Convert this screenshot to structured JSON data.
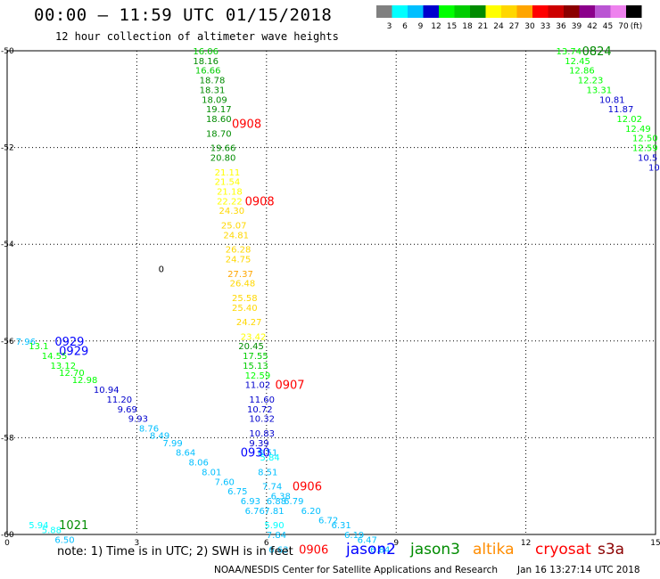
{
  "header": {
    "title": "00:00 – 11:59 UTC 01/15/2018",
    "subtitle": "12 hour collection of altimeter wave heights"
  },
  "colorbar": {
    "colors": [
      "#808080",
      "#00ffff",
      "#00bfff",
      "#0000cd",
      "#00ff00",
      "#00cd00",
      "#008b00",
      "#ffff00",
      "#ffd700",
      "#ffa500",
      "#ff0000",
      "#cd0000",
      "#8b0000",
      "#8b008b",
      "#ba55d3",
      "#ee82ee",
      "#000000"
    ],
    "labels": [
      "3",
      "6",
      "9",
      "12",
      "15",
      "18",
      "21",
      "24",
      "27",
      "30",
      "33",
      "36",
      "39",
      "42",
      "45",
      "70",
      "(ft)"
    ]
  },
  "footer": {
    "note": "note: 1) Time is in UTC; 2) SWH is in feet",
    "missions": [
      {
        "name": "jason2",
        "color": "#0000ff"
      },
      {
        "name": "jason3",
        "color": "#008b00"
      },
      {
        "name": "altika",
        "color": "#ff8c00"
      },
      {
        "name": "cryosat",
        "color": "#ff0000"
      },
      {
        "name": "s3a",
        "color": "#8b0000"
      }
    ],
    "credit": "NOAA/NESDIS Center for Satellite Applications and Research",
    "timestamp": "Jan 16 13:27:14 UTC 2018"
  },
  "chart_data": {
    "type": "scatter",
    "xlim": [
      0,
      15
    ],
    "ylim": [
      -60,
      -50
    ],
    "xticks": [
      "0",
      "3",
      "6",
      "9",
      "12",
      "15"
    ],
    "yticks": [
      "-50",
      "-52",
      "-54",
      "-56",
      "-58",
      "-60"
    ],
    "grid": true,
    "tracks": [
      {
        "label": "0908",
        "label_pos": [
          5.2,
          -51.5
        ],
        "label_color": "#ff0000",
        "points": [
          [
            4.3,
            -50.0,
            "16.06"
          ],
          [
            4.3,
            -50.2,
            "18.16"
          ],
          [
            4.35,
            -50.4,
            "16.66"
          ],
          [
            4.45,
            -50.6,
            "18.78"
          ],
          [
            4.45,
            -50.8,
            "18.31"
          ],
          [
            4.5,
            -51.0,
            "18.09"
          ],
          [
            4.6,
            -51.2,
            "19.17"
          ],
          [
            4.6,
            -51.4,
            "18.60"
          ],
          [
            4.6,
            -51.7,
            "18.70"
          ],
          [
            4.7,
            -52.0,
            "19.66"
          ],
          [
            4.7,
            -52.2,
            "20.80"
          ]
        ]
      },
      {
        "label": "0908",
        "label_pos": [
          5.5,
          -53.1
        ],
        "label_color": "#ff0000",
        "points": [
          [
            4.8,
            -52.5,
            "21.11"
          ],
          [
            4.8,
            -52.7,
            "21.54"
          ],
          [
            4.85,
            -52.9,
            "21.18"
          ],
          [
            4.85,
            -53.1,
            "22.22"
          ],
          [
            4.9,
            -53.3,
            "24.30"
          ],
          [
            4.95,
            -53.6,
            "25.07"
          ],
          [
            5.0,
            -53.8,
            "24.81"
          ],
          [
            5.05,
            -54.1,
            "26.28"
          ],
          [
            5.05,
            -54.3,
            "24.75"
          ],
          [
            5.1,
            -54.6,
            "27.37"
          ],
          [
            5.15,
            -54.8,
            "26.48"
          ],
          [
            5.2,
            -55.1,
            "25.58"
          ],
          [
            5.2,
            -55.3,
            "25.40"
          ],
          [
            5.3,
            -55.6,
            "24.27"
          ],
          [
            5.4,
            -55.9,
            "23.42"
          ]
        ]
      },
      {
        "label": "0907",
        "label_pos": [
          6.2,
          -56.9
        ],
        "label_color": "#ff0000",
        "points": [
          [
            5.35,
            -56.1,
            "20.45"
          ],
          [
            5.45,
            -56.3,
            "17.55"
          ],
          [
            5.45,
            -56.5,
            "15.13"
          ],
          [
            5.5,
            -56.7,
            "12.59"
          ],
          [
            5.5,
            -56.9,
            "11.02"
          ],
          [
            5.6,
            -57.2,
            "11.60"
          ],
          [
            5.55,
            -57.4,
            "10.72"
          ],
          [
            5.6,
            -57.6,
            "10.32"
          ],
          [
            5.6,
            -57.9,
            "10.83"
          ],
          [
            5.6,
            -58.1,
            "9.39"
          ]
        ]
      },
      {
        "label": "0906",
        "label_pos": [
          6.6,
          -59.0
        ],
        "label_color": "#ff0000",
        "points": [
          [
            5.8,
            -58.3,
            "8.51"
          ],
          [
            5.85,
            -58.4,
            "5.84"
          ],
          [
            5.8,
            -58.7,
            "8.51"
          ],
          [
            5.9,
            -59.0,
            "7.74"
          ],
          [
            6.1,
            -59.2,
            "6.38"
          ],
          [
            6.0,
            -59.3,
            "6.88"
          ],
          [
            6.4,
            -59.3,
            "6.79"
          ],
          [
            6.8,
            -59.5,
            "6.20"
          ],
          [
            7.2,
            -59.7,
            "6.72"
          ],
          [
            7.5,
            -59.8,
            "6.31"
          ],
          [
            7.8,
            -60.0,
            "6.19"
          ],
          [
            8.1,
            -60.1,
            "6.47"
          ],
          [
            8.4,
            -60.3,
            "6.84"
          ],
          [
            5.95,
            -59.5,
            "7.81"
          ],
          [
            5.95,
            -59.8,
            "5.90"
          ],
          [
            6.0,
            -60.0,
            "7.84"
          ],
          [
            6.05,
            -60.3,
            "6.63"
          ]
        ]
      },
      {
        "label": "0906",
        "label_pos": [
          6.75,
          -60.3
        ],
        "label_color": "#ff0000",
        "points": []
      },
      {
        "label": "0929",
        "label_pos": [
          1.1,
          -56.0
        ],
        "label_color": "#0000ff",
        "points": [
          [
            0.2,
            -56.0,
            "7.96"
          ],
          [
            0.5,
            -56.1,
            "13.1"
          ],
          [
            0.8,
            -56.3,
            "14.55"
          ],
          [
            1.0,
            -56.5,
            "13.12"
          ],
          [
            1.2,
            -56.65,
            "12.70"
          ],
          [
            1.5,
            -56.8,
            "12.98"
          ]
        ]
      },
      {
        "label": "0929",
        "label_pos": [
          1.2,
          -56.2
        ],
        "label_color": "#0000ff",
        "points": [
          [
            2.0,
            -57.0,
            "10.94"
          ],
          [
            2.3,
            -57.2,
            "11.20"
          ],
          [
            2.55,
            -57.4,
            "9.69"
          ],
          [
            2.8,
            -57.6,
            "9.93"
          ],
          [
            3.05,
            -57.8,
            "8.76"
          ],
          [
            3.3,
            -57.95,
            "8.49"
          ],
          [
            3.6,
            -58.1,
            "7.99"
          ],
          [
            3.9,
            -58.3,
            "8.64"
          ],
          [
            4.2,
            -58.5,
            "8.06"
          ],
          [
            4.5,
            -58.7,
            "8.01"
          ],
          [
            4.8,
            -58.9,
            "7.60"
          ],
          [
            5.1,
            -59.1,
            "6.75"
          ],
          [
            5.4,
            -59.3,
            "6.93"
          ],
          [
            5.5,
            -59.5,
            "6.76"
          ]
        ]
      },
      {
        "label": "0930",
        "label_pos": [
          5.4,
          -58.3
        ],
        "label_color": "#0000ff",
        "points": []
      },
      {
        "label": "1021",
        "label_pos": [
          1.2,
          -59.8
        ],
        "label_color": "#008b00",
        "points": [
          [
            0.5,
            -59.8,
            "5.94"
          ],
          [
            0.8,
            -59.9,
            "5.88"
          ],
          [
            1.1,
            -60.1,
            "6.50"
          ]
        ]
      },
      {
        "label": "0824",
        "label_pos": [
          13.3,
          -50.0
        ],
        "label_color": "#008b00",
        "points": [
          [
            12.7,
            -50.0,
            "13.74"
          ],
          [
            12.9,
            -50.2,
            "12.45"
          ],
          [
            13.0,
            -50.4,
            "12.86"
          ],
          [
            13.2,
            -50.6,
            "12.23"
          ],
          [
            13.4,
            -50.8,
            "13.31"
          ],
          [
            13.7,
            -51.0,
            "10.81"
          ],
          [
            13.9,
            -51.2,
            "11.87"
          ],
          [
            14.1,
            -51.4,
            "12.02"
          ],
          [
            14.3,
            -51.6,
            "12.49"
          ],
          [
            14.5,
            -51.8,
            "12.50"
          ],
          [
            14.7,
            -52.0,
            "12.59"
          ],
          [
            14.85,
            -52.2,
            "10.5"
          ],
          [
            15.0,
            -52.4,
            "10"
          ]
        ]
      }
    ],
    "stray_marks": [
      {
        "x": 3.5,
        "y": -54.5,
        "text": "0"
      }
    ]
  }
}
